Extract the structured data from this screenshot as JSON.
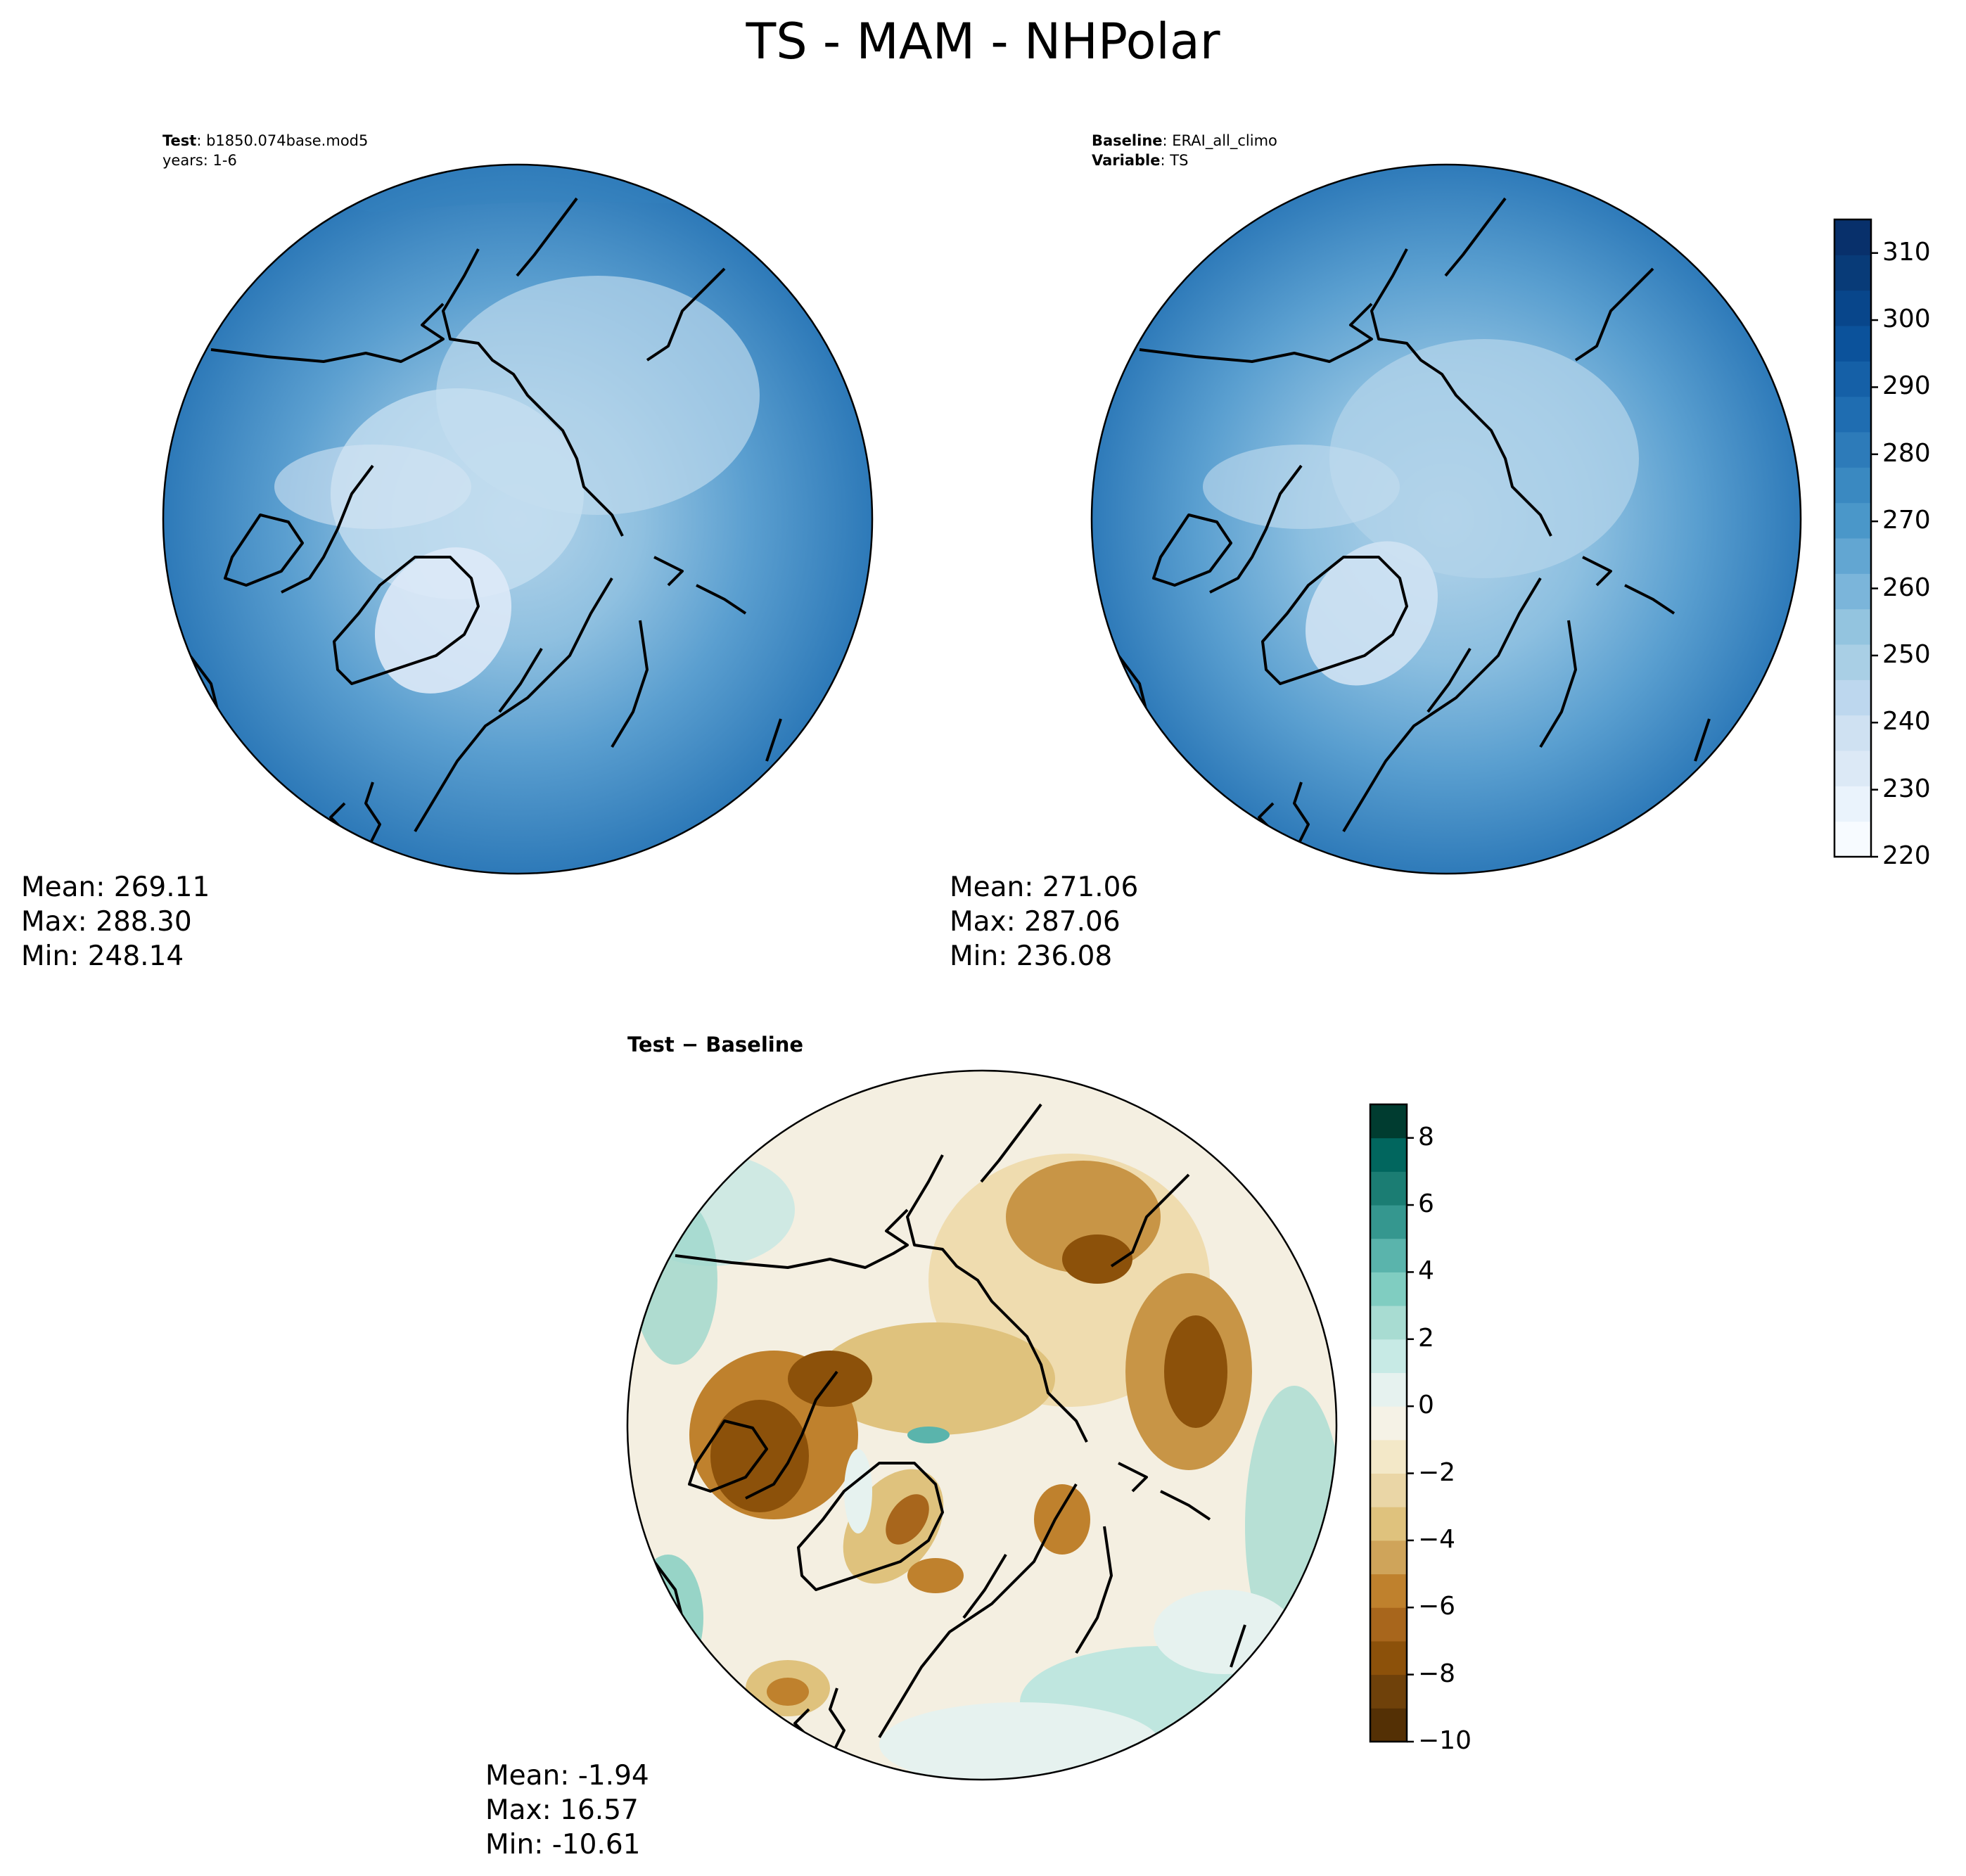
{
  "figure": {
    "title": "TS - MAM - NHPolar"
  },
  "test_panel": {
    "header": [
      {
        "key": "Test",
        "value": "b1850.074base.mod5"
      },
      {
        "key": "",
        "value": "years: 1-6"
      }
    ],
    "stats": {
      "mean": "Mean: 269.11",
      "max": "Max: 288.30",
      "min": "Min: 248.14"
    }
  },
  "baseline_panel": {
    "header": [
      {
        "key": "Baseline",
        "value": "ERAI_all_climo"
      },
      {
        "key": "Variable",
        "value": "TS"
      }
    ],
    "stats": {
      "mean": "Mean: 271.06",
      "max": "Max: 287.06",
      "min": "Min: 236.08"
    }
  },
  "diff_panel": {
    "title": "Test − Baseline",
    "stats": {
      "mean": "Mean: -1.94",
      "max": "Max: 16.57",
      "min": "Min: -10.61"
    }
  },
  "colorbar_main": {
    "range": [
      220,
      315
    ],
    "ticks": [
      "220",
      "230",
      "240",
      "250",
      "260",
      "270",
      "280",
      "290",
      "300",
      "310"
    ],
    "tick_values": [
      220,
      230,
      240,
      250,
      260,
      270,
      280,
      290,
      300,
      310
    ],
    "colors": [
      "#f7fbff",
      "#eaf3fc",
      "#dce9f6",
      "#cfe1f2",
      "#bdd7ee",
      "#a9cfe5",
      "#93c4df",
      "#7bb5da",
      "#62a6d2",
      "#4a97c9",
      "#3a89c1",
      "#2d7bb9",
      "#1f6db1",
      "#1560a7",
      "#0b529b",
      "#08468b",
      "#083b78",
      "#08306b"
    ]
  },
  "colorbar_diff": {
    "range": [
      -10,
      9
    ],
    "ticks": [
      "−10",
      "−8",
      "−6",
      "−4",
      "−2",
      "0",
      "2",
      "4",
      "6",
      "8"
    ],
    "tick_values": [
      -10,
      -8,
      -6,
      -4,
      -2,
      0,
      2,
      4,
      6,
      8
    ],
    "colors": [
      "#543005",
      "#6f410a",
      "#8c510a",
      "#a8661c",
      "#bf812d",
      "#cfa45a",
      "#dfc27d",
      "#ead6a6",
      "#f3e8c8",
      "#f5f2e6",
      "#e6f2ef",
      "#c7eae5",
      "#a8dcd2",
      "#80cdc1",
      "#5ab4ac",
      "#35978f",
      "#1b7d73",
      "#01665e",
      "#003c30"
    ]
  }
}
